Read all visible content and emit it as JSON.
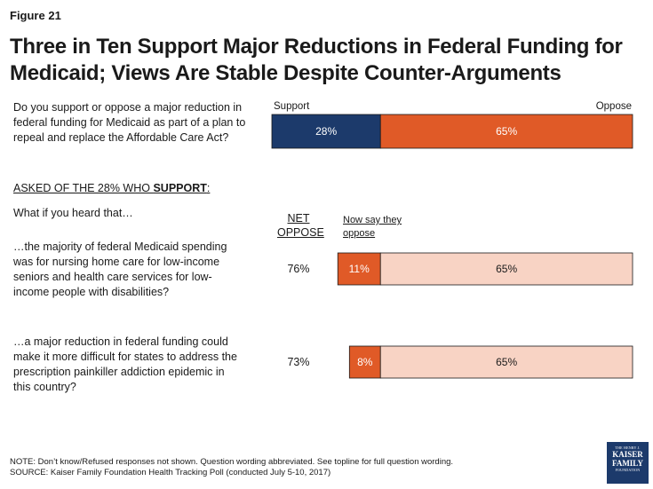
{
  "figure_label": "Figure 21",
  "title": "Three in Ten Support Major Reductions in Federal Funding for Medicaid; Views Are Stable Despite Counter-Arguments",
  "main_question": "Do you support or oppose a major reduction in federal funding for Medicaid as part of a plan to repeal and replace the Affordable Care Act?",
  "asked_prefix": "ASKED OF THE 28% WHO ",
  "asked_emph": "SUPPORT",
  "asked_suffix": ":",
  "what_if": "What if you heard that…",
  "net_oppose_header": "NET OPPOSE",
  "now_oppose_header": "Now say they oppose",
  "note": "NOTE: Don’t know/Refused responses not shown. Question wording abbreviated. See topline for full question wording.",
  "source": "SOURCE: Kaiser Family Foundation Health Tracking Poll (conducted July 5-10, 2017)",
  "logo": {
    "line1": "THE HENRY J.",
    "line2": "KAISER",
    "line3": "FAMILY",
    "line4": "FOUNDATION"
  },
  "chart_data": {
    "type": "bar",
    "orientation": "horizontal",
    "stacked": true,
    "xlim": [
      0,
      100
    ],
    "colors": {
      "support": "#1c3a6b",
      "oppose": "#e05a27",
      "previous_oppose": "#f8d3c4"
    },
    "main_bar": {
      "support_label": "Support",
      "oppose_label": "Oppose",
      "support": 28,
      "oppose": 65,
      "support_text": "28%",
      "oppose_text": "65%"
    },
    "follow_ups": [
      {
        "question": "…the majority of federal Medicaid spending was for nursing home care for low-income seniors and health care services for low-income people with disabilities?",
        "net_oppose": "76%",
        "now_oppose": 11,
        "now_oppose_text": "11%",
        "previous_oppose": 65,
        "previous_oppose_text": "65%"
      },
      {
        "question": "…a major reduction in federal funding could make it more difficult for states to address the prescription painkiller addiction epidemic in this country?",
        "net_oppose": "73%",
        "now_oppose": 8,
        "now_oppose_text": "8%",
        "previous_oppose": 65,
        "previous_oppose_text": "65%"
      }
    ]
  }
}
